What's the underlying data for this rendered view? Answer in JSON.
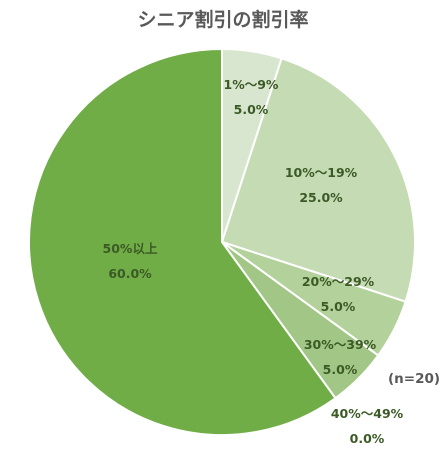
{
  "chart_data": {
    "type": "pie",
    "title": "シニア割引の割引率",
    "note": "(n=20)",
    "start_angle_deg": 0,
    "direction": "clockwise",
    "slices": [
      {
        "label": "1%〜9%",
        "value": 5.0,
        "value_label": "5.0%",
        "color": "#d9e6cf"
      },
      {
        "label": "10%〜19%",
        "value": 25.0,
        "value_label": "25.0%",
        "color": "#c5dbb4"
      },
      {
        "label": "20%〜29%",
        "value": 5.0,
        "value_label": "5.0%",
        "color": "#b3d19b"
      },
      {
        "label": "30%〜39%",
        "value": 5.0,
        "value_label": "5.0%",
        "color": "#a1c685"
      },
      {
        "label": "40%〜49%",
        "value": 0.0,
        "value_label": "0.0%",
        "color": "#8dbb6a"
      },
      {
        "label": "50%以上",
        "value": 60.0,
        "value_label": "60.0%",
        "color": "#70ad47"
      }
    ]
  }
}
